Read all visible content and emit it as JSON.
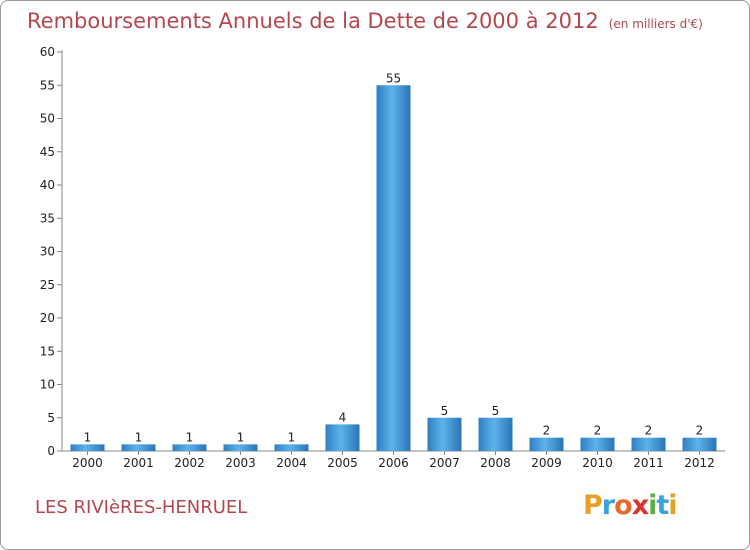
{
  "chart_data": {
    "type": "bar",
    "title": "Remboursements Annuels de la Dette de 2000 à 2012",
    "unit": "(en milliers d'€)",
    "categories": [
      "2000",
      "2001",
      "2002",
      "2003",
      "2004",
      "2005",
      "2006",
      "2007",
      "2008",
      "2009",
      "2010",
      "2011",
      "2012"
    ],
    "values": [
      1,
      1,
      1,
      1,
      1,
      4,
      55,
      5,
      5,
      2,
      2,
      2,
      2
    ],
    "data_labels": [
      "1",
      "1",
      "1",
      "1",
      "1",
      "4",
      "55",
      "5",
      "5",
      "2",
      "2",
      "2",
      "2"
    ],
    "yticks": [
      "0",
      "5",
      "10",
      "15",
      "20",
      "25",
      "30",
      "35",
      "40",
      "45",
      "50",
      "55",
      "60"
    ],
    "ylim": [
      0,
      60
    ],
    "xlabel": "",
    "ylabel": "",
    "grid": false,
    "legend": "none",
    "bar_color": "#3b8fd6",
    "title_color": "#b5464e"
  },
  "footer": {
    "commune": "LES RIVIèRES-HENRUEL",
    "logo_letters": [
      "P",
      "r",
      "o",
      "x",
      "i",
      "t",
      "i"
    ],
    "logo_colors": [
      "#e5a125",
      "#3aa3d9",
      "#e26d2a",
      "#d9342b",
      "#5fae46",
      "#3aa3d9",
      "#e5a125"
    ]
  }
}
